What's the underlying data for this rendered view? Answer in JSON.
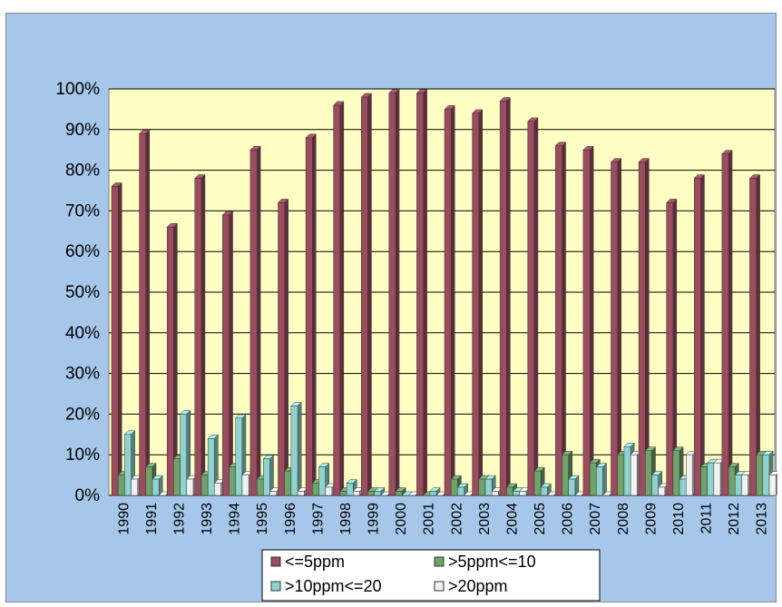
{
  "chart_data": {
    "type": "bar",
    "style": "3d-clustered-column",
    "title": "",
    "xlabel": "",
    "ylabel": "",
    "ylim": [
      0,
      100
    ],
    "y_ticks": [
      "0%",
      "10%",
      "20%",
      "30%",
      "40%",
      "50%",
      "60%",
      "70%",
      "80%",
      "90%",
      "100%"
    ],
    "grid": true,
    "legend_position": "bottom",
    "categories": [
      "1990",
      "1991",
      "1992",
      "1993",
      "1994",
      "1995",
      "1996",
      "1997",
      "1998",
      "1999",
      "2000",
      "2001",
      "2002",
      "2003",
      "2004",
      "2005",
      "2006",
      "2007",
      "2008",
      "2009",
      "2010",
      "2011",
      "2012",
      "2013"
    ],
    "series": [
      {
        "name": "<=5ppm",
        "color": "#9b4c5f",
        "values": [
          76,
          89,
          66,
          78,
          69,
          85,
          72,
          88,
          96,
          98,
          99,
          99,
          95,
          94,
          97,
          92,
          86,
          85,
          82,
          82,
          72,
          78,
          84,
          78
        ]
      },
      {
        "name": ">5ppm<=10",
        "color": "#6fa36b",
        "values": [
          5,
          7,
          9,
          5,
          7,
          4,
          6,
          3,
          1,
          1,
          1,
          0,
          4,
          4,
          2,
          6,
          10,
          8,
          10,
          11,
          11,
          7,
          7,
          10
        ]
      },
      {
        "name": ">10ppm<=20",
        "color": "#8fd3cf",
        "values": [
          15,
          4,
          20,
          14,
          19,
          9,
          22,
          7,
          3,
          1,
          0,
          1,
          2,
          4,
          1,
          2,
          4,
          7,
          12,
          5,
          4,
          8,
          5,
          10
        ]
      },
      {
        "name": ">20ppm",
        "color": "#f2f2f2",
        "values": [
          4,
          0,
          4,
          3,
          5,
          1,
          1,
          2,
          1,
          0,
          0,
          0,
          0,
          1,
          1,
          0,
          0,
          0,
          10,
          2,
          10,
          8,
          5,
          5
        ]
      }
    ],
    "colors": {
      "outer_background": "#a7c7ea",
      "plot_background": "#ffffc4",
      "grid": "#000000"
    }
  }
}
